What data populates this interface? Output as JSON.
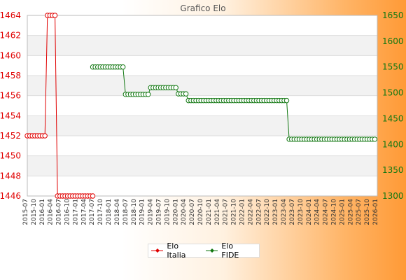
{
  "chart_data": {
    "type": "line",
    "title": "Grafico Elo",
    "xlabel": "",
    "ylabel": "",
    "y_left": {
      "lim": [
        1446,
        1464
      ],
      "ticks": [
        1446,
        1448,
        1450,
        1452,
        1454,
        1456,
        1458,
        1460,
        1462,
        1464
      ]
    },
    "y_right": {
      "lim": [
        1300,
        1650
      ],
      "ticks": [
        1300,
        1350,
        1400,
        1450,
        1500,
        1550,
        1600,
        1650
      ]
    },
    "x_count": 140,
    "x_ticks": [
      "2015-07",
      "2015-10",
      "2016-01",
      "2016-04",
      "2016-07",
      "2016-10",
      "2017-01",
      "2017-04",
      "2017-07",
      "2017-10",
      "2018-01",
      "2018-04",
      "2018-07",
      "2018-10",
      "2019-01",
      "2019-04",
      "2019-07",
      "2019-10",
      "2020-01",
      "2020-04",
      "2020-07",
      "2020-10",
      "2021-01",
      "2021-04",
      "2021-07",
      "2021-10",
      "2022-01",
      "2022-04",
      "2022-07",
      "2022-10",
      "2023-01",
      "2023-04",
      "2023-07",
      "2023-10",
      "2024-01",
      "2024-04",
      "2024-07",
      "2024-10",
      "2025-01",
      "2025-04",
      "2025-07",
      "2025-10",
      "2026-01"
    ],
    "grid": true,
    "legend": "bottom",
    "series": [
      {
        "name": "Elo Italia",
        "axis": "left",
        "color": "#e00000",
        "segments": [
          {
            "from": 0,
            "to": 7,
            "value": 1452
          },
          {
            "from": 8,
            "to": 11,
            "value": 1464
          },
          {
            "from": 12,
            "to": 26,
            "value": 1446
          }
        ]
      },
      {
        "name": "Elo FIDE",
        "axis": "right",
        "color": "#117711",
        "segments": [
          {
            "from": 26,
            "to": 38,
            "value": 1550
          },
          {
            "from": 39,
            "to": 48,
            "value": 1497
          },
          {
            "from": 49,
            "to": 59,
            "value": 1510
          },
          {
            "from": 60,
            "to": 63,
            "value": 1498
          },
          {
            "from": 64,
            "to": 103,
            "value": 1485
          },
          {
            "from": 104,
            "to": 138,
            "value": 1410
          }
        ]
      }
    ]
  }
}
